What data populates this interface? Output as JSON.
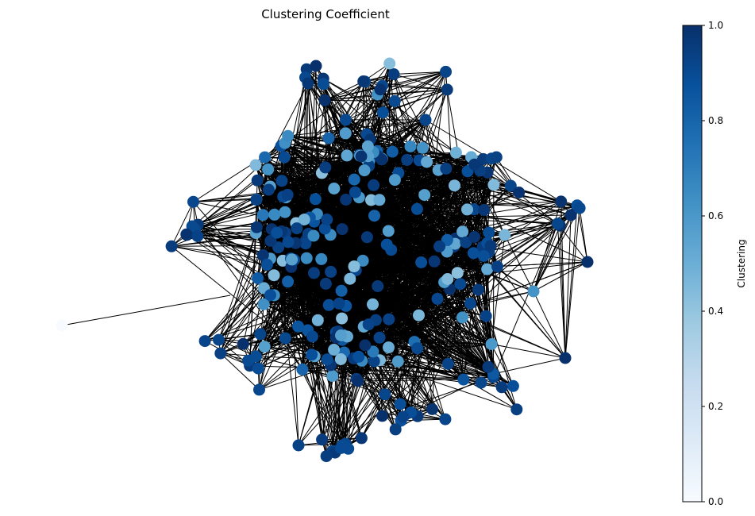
{
  "chart_data": {
    "type": "network",
    "title": "Clustering Coefficient",
    "colorbar": {
      "label": "Clustering",
      "range": [
        0.0,
        1.0
      ],
      "ticks": [
        "0.0",
        "0.2",
        "0.4",
        "0.6",
        "0.8",
        "1.0"
      ],
      "colormap": "Blues",
      "colors": [
        "#f7fbff",
        "#deebf7",
        "#c6dbef",
        "#9ecae1",
        "#6baed6",
        "#4292c6",
        "#2171b5",
        "#08519c",
        "#08306b"
      ]
    },
    "edge_color": "#000000",
    "node_count_estimate": 300,
    "clustering_mix": {
      "high": 0.72,
      "mid": 0.22,
      "low": 0.06
    }
  }
}
